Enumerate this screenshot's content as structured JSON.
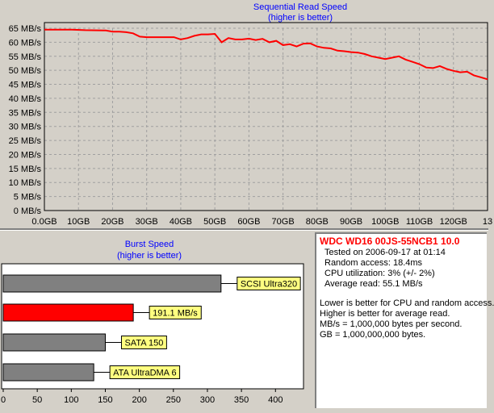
{
  "sequential": {
    "title": "Sequential Read Speed",
    "subtitle": "(higher is better)",
    "colors": {
      "line": "#ff0000",
      "title": "#0000ff",
      "grid": "#a0a0a0"
    },
    "chart_data": {
      "type": "line",
      "title": "Sequential Read Speed",
      "subtitle": "(higher is better)",
      "y_ticks": [
        "0 MB/s",
        "5 MB/s",
        "10 MB/s",
        "15 MB/s",
        "20 MB/s",
        "25 MB/s",
        "30 MB/s",
        "35 MB/s",
        "40 MB/s",
        "45 MB/s",
        "50 MB/s",
        "55 MB/s",
        "60 MB/s",
        "65 MB/s"
      ],
      "x_ticks": [
        "0.0GB",
        "10GB",
        "20GB",
        "30GB",
        "40GB",
        "50GB",
        "60GB",
        "70GB",
        "80GB",
        "90GB",
        "100GB",
        "110GB",
        "120GB",
        "13"
      ],
      "ylim": [
        0,
        67
      ],
      "xlim": [
        0,
        130
      ],
      "grid": true,
      "series": [
        {
          "x": [
            0,
            8,
            12,
            18,
            20,
            22,
            24,
            26,
            28,
            30,
            34,
            38,
            40,
            42,
            44,
            46,
            48,
            50,
            52,
            54,
            56,
            58,
            60,
            62,
            64,
            66,
            68,
            70,
            72,
            74,
            76,
            78,
            80,
            82,
            84,
            86,
            88,
            90,
            92,
            94,
            96,
            98,
            100,
            102,
            104,
            106,
            108,
            110,
            112,
            114,
            116,
            118,
            120,
            122,
            124,
            126,
            128,
            130
          ],
          "y": [
            64.5,
            64.5,
            64.3,
            64.2,
            63.8,
            63.8,
            63.6,
            63.2,
            62.0,
            61.8,
            61.8,
            61.8,
            61.0,
            61.5,
            62.3,
            62.8,
            62.8,
            63.0,
            60.0,
            61.5,
            61.0,
            61.0,
            61.3,
            60.8,
            61.2,
            60.0,
            60.5,
            59.0,
            59.3,
            58.5,
            59.5,
            59.6,
            58.5,
            58.0,
            57.8,
            57.0,
            56.8,
            56.5,
            56.3,
            55.8,
            55.0,
            54.5,
            54.0,
            54.5,
            55.0,
            53.8,
            53.0,
            52.2,
            51.0,
            50.8,
            51.5,
            50.5,
            49.8,
            49.3,
            49.5,
            48.2,
            47.5,
            46.8
          ]
        }
      ]
    }
  },
  "burst": {
    "title": "Burst Speed",
    "subtitle": "(higher is better)",
    "chart_data": {
      "type": "bar",
      "title": "Burst Speed",
      "subtitle": "(higher is better)",
      "orientation": "horizontal",
      "xlim": [
        0,
        440
      ],
      "x_ticks": [
        "0",
        "50",
        "100",
        "150",
        "200",
        "250",
        "300",
        "350",
        "400"
      ],
      "grid": false,
      "bars": [
        {
          "label": "SCSI Ultra320",
          "value": 320,
          "color": "#808080"
        },
        {
          "label": "191.1 MB/s",
          "value": 191.1,
          "color": "#ff0000"
        },
        {
          "label": "SATA 150",
          "value": 150,
          "color": "#808080"
        },
        {
          "label": "ATA UltraDMA 6",
          "value": 133,
          "color": "#808080"
        }
      ]
    }
  },
  "info": {
    "title": "WDC WD16 00JS-55NCB1 10.0",
    "lines": [
      "Tested on 2006-09-17 at 01:14",
      "Random access: 18.4ms",
      "CPU utilization: 3% (+/- 2%)",
      "Average read: 55.1 MB/s"
    ],
    "notes": [
      "Lower is better for CPU and random access.",
      "Higher is better for average read.",
      "MB/s = 1,000,000 bytes per second.",
      "GB = 1,000,000,000 bytes."
    ]
  }
}
